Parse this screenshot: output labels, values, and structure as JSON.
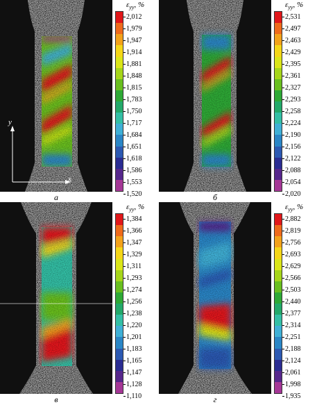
{
  "scale_label": "ε",
  "scale_subscript": "yy",
  "scale_unit": ", %",
  "axis_x": "x",
  "axis_y": "y",
  "colors": [
    "#e1171a",
    "#ef6a1b",
    "#f3a21a",
    "#f5d718",
    "#dbe619",
    "#a6d61a",
    "#69bf1f",
    "#2ea936",
    "#23a96a",
    "#33bfa5",
    "#3fb0d6",
    "#2a86c6",
    "#2c59b2",
    "#2a2c92",
    "#56278c",
    "#a53796"
  ],
  "panels": [
    {
      "letter": "а",
      "ticks": [
        "2,012",
        "1,979",
        "1,947",
        "1,914",
        "1,881",
        "1,848",
        "1,815",
        "1,783",
        "1,750",
        "1,717",
        "1,684",
        "1,651",
        "1,618",
        "1,586",
        "1,553",
        "1,520"
      ]
    },
    {
      "letter": "б",
      "ticks": [
        "2,531",
        "2,497",
        "2,463",
        "2,429",
        "2,395",
        "2,361",
        "2,327",
        "2,293",
        "2,258",
        "2,224",
        "2,190",
        "2,156",
        "2,122",
        "2,088",
        "2,054",
        "2,020"
      ]
    },
    {
      "letter": "в",
      "ticks": [
        "1,384",
        "1,366",
        "1,347",
        "1,329",
        "1,311",
        "1,293",
        "1,274",
        "1,256",
        "1,238",
        "1,220",
        "1,201",
        "1,183",
        "1,165",
        "1,147",
        "1,128",
        "1,110"
      ]
    },
    {
      "letter": "г",
      "ticks": [
        "2,882",
        "2,819",
        "2,756",
        "2,693",
        "2,629",
        "2,566",
        "2,503",
        "2,440",
        "2,377",
        "2,314",
        "2,251",
        "2,188",
        "2,124",
        "2,061",
        "1,998",
        "1,935"
      ]
    }
  ]
}
